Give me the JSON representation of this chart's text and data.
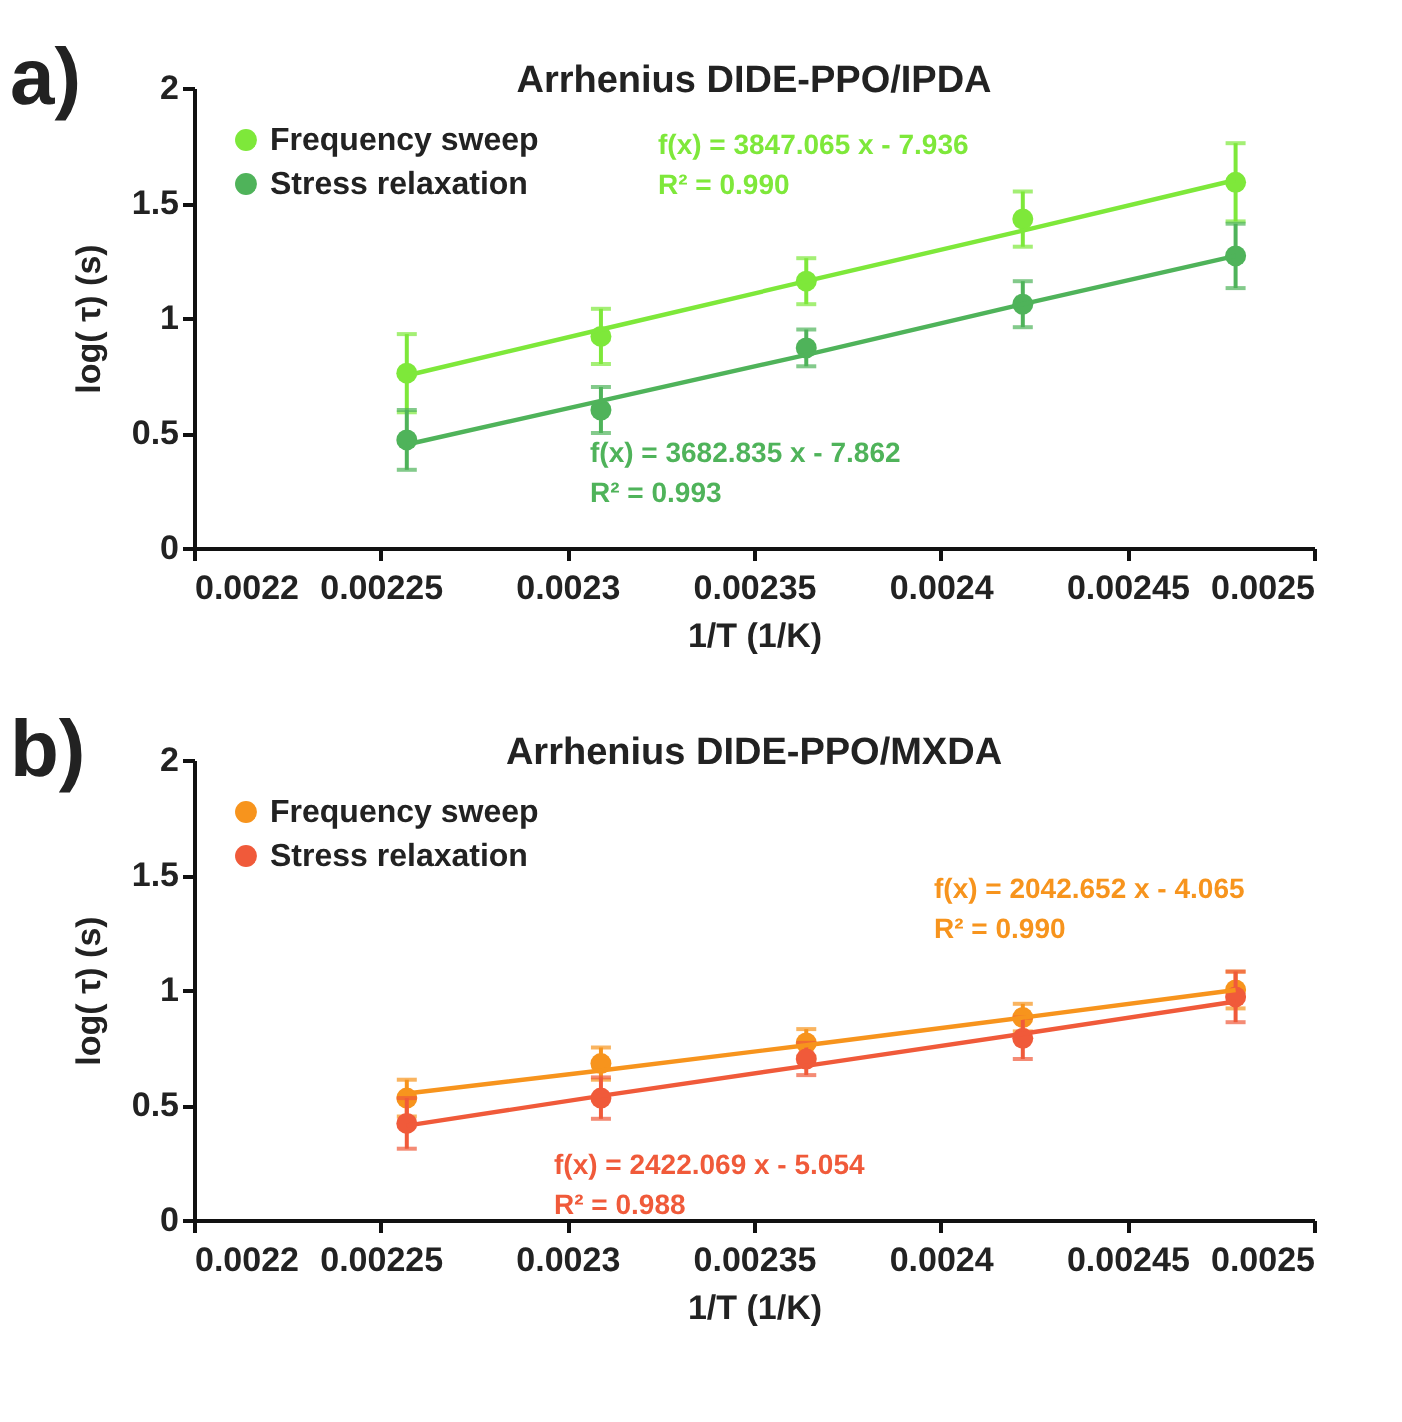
{
  "chart_data": [
    {
      "type": "scatter",
      "title": "Arrhenius DIDE-PPO/IPDA",
      "xlabel": "1/T (1/K)",
      "ylabel": "log( τ) (s)",
      "x": [
        0.002257,
        0.002309,
        0.002364,
        0.002422,
        0.002479
      ],
      "series": [
        {
          "name": "Frequency sweep",
          "color": "#7ee83a",
          "values": [
            0.76,
            0.92,
            1.16,
            1.43,
            1.59
          ],
          "errors": [
            0.17,
            0.12,
            0.1,
            0.12,
            0.17
          ]
        },
        {
          "name": "Stress relaxation",
          "color": "#4fb35a",
          "values": [
            0.47,
            0.6,
            0.87,
            1.06,
            1.27
          ],
          "errors": [
            0.13,
            0.1,
            0.08,
            0.1,
            0.14
          ]
        },
        {
          "type": "line",
          "color": "#7ee83a",
          "marker": "none",
          "values": [
            0.75,
            0.95,
            1.16,
            1.38,
            1.6
          ]
        },
        {
          "type": "line",
          "color": "#4fb35a",
          "marker": "none",
          "values": [
            0.45,
            0.64,
            0.84,
            1.06,
            1.27
          ]
        }
      ],
      "annotations": [
        "a)",
        "f(x) = 3847.065 x - 7.936",
        "R² = 0.990",
        "f(x) = 3682.835 x - 7.862",
        "R² = 0.993"
      ],
      "xlim": [
        0.0022,
        0.0025
      ],
      "xticks": [
        0.0022,
        0.00225,
        0.0023,
        0.00235,
        0.0024,
        0.00245,
        0.0025
      ],
      "ylim": [
        0,
        2
      ],
      "yticks": [
        0,
        0.5,
        1,
        1.5,
        2
      ],
      "legend": "top left",
      "marker": "circle",
      "grid": false
    },
    {
      "type": "scatter",
      "title": "Arrhenius DIDE-PPO/MXDA",
      "xlabel": "1/T (1/K)",
      "ylabel": "log( τ) (s)",
      "x": [
        0.002257,
        0.002309,
        0.002364,
        0.002422,
        0.002479
      ],
      "series": [
        {
          "name": "Frequency sweep",
          "color": "#f7941d",
          "values": [
            0.53,
            0.68,
            0.77,
            0.88,
            1.0
          ],
          "errors": [
            0.08,
            0.07,
            0.06,
            0.06,
            0.08
          ]
        },
        {
          "name": "Stress relaxation",
          "color": "#f05a3a",
          "values": [
            0.42,
            0.53,
            0.7,
            0.79,
            0.97
          ],
          "errors": [
            0.11,
            0.09,
            0.07,
            0.09,
            0.11
          ]
        },
        {
          "type": "line",
          "color": "#f7941d",
          "marker": "none",
          "values": [
            0.55,
            0.65,
            0.76,
            0.88,
            1.0
          ]
        },
        {
          "type": "line",
          "color": "#f05a3a",
          "marker": "none",
          "values": [
            0.41,
            0.54,
            0.67,
            0.81,
            0.95
          ]
        }
      ],
      "annotations": [
        "b)",
        "f(x) = 2042.652 x - 4.065",
        "R² = 0.990",
        "f(x) = 2422.069 x - 5.054",
        "R² = 0.988"
      ],
      "xlim": [
        0.0022,
        0.0025
      ],
      "xticks": [
        0.0022,
        0.00225,
        0.0023,
        0.00235,
        0.0024,
        0.00245,
        0.0025
      ],
      "ylim": [
        0,
        2
      ],
      "yticks": [
        0,
        0.5,
        1,
        1.5,
        2
      ],
      "legend": "top left",
      "marker": "circle",
      "grid": false
    }
  ]
}
